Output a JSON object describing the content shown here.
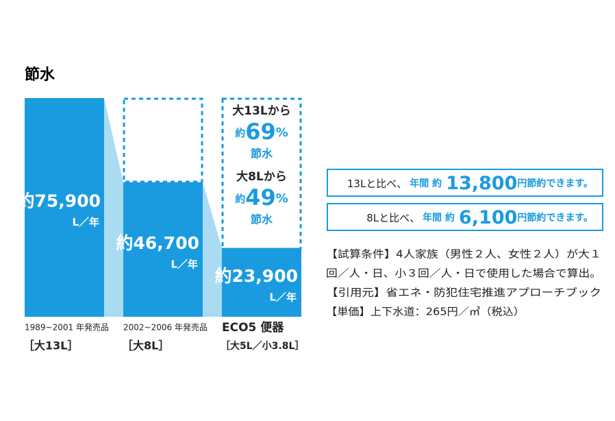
{
  "chart_data": {
    "type": "bar",
    "title": "節水",
    "categories": [
      "1989~2001 年発売品",
      "2002~2006 年発売品",
      "ECO5 便器"
    ],
    "category_notes": [
      "［大13L］",
      "［大8L］",
      "［大5L／小3.8L］"
    ],
    "values": [
      75900,
      46700,
      23900
    ],
    "value_labels": [
      "約75,900",
      "約46,700",
      "約23,900"
    ],
    "unit": "L／年",
    "color": "#1a9be0",
    "connector_color": "#a9dcf3",
    "savings": [
      {
        "from": "大13Lから",
        "prefix": "約",
        "value": "69",
        "unit": "%",
        "suffix": "節水"
      },
      {
        "from": "大8Lから",
        "prefix": "約",
        "value": "49",
        "unit": "%",
        "suffix": "節水"
      }
    ],
    "comparisons": [
      {
        "lead": "13Lと比べ、",
        "mid": "年間 約",
        "amount": "13,800",
        "unit": "円",
        "tail": "節約できます。"
      },
      {
        "lead": "8Lと比べ、",
        "mid": "年間 約",
        "amount": "6,100",
        "unit": "円",
        "tail": "節約できます。"
      }
    ],
    "conditions": [
      "【試算条件】4人家族（男性２人、女性２人）が大１",
      "回／人・日、小３回／人・日で使用した場合で算出。",
      "【引用元】省エネ・防犯住宅推進アプローチブック",
      "【単価】上下水道：265円／㎥（税込）"
    ]
  }
}
